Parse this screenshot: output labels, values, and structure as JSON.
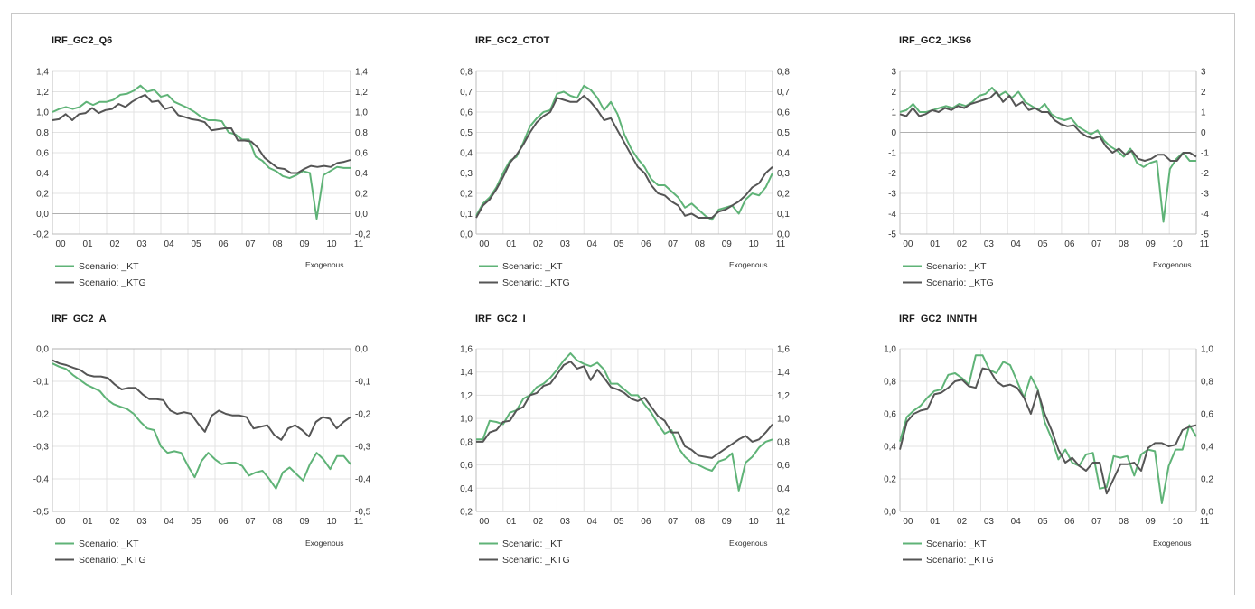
{
  "colors": {
    "kt": "#5fb377",
    "ktg": "#555555",
    "grid": "#e3e3e3",
    "axis": "#bdbdbd"
  },
  "chart_data": [
    {
      "type": "line",
      "title": "IRF_GC2_Q6",
      "xlabel": "Exogenous",
      "x_ticks": [
        "00",
        "01",
        "02",
        "03",
        "04",
        "05",
        "06",
        "07",
        "08",
        "09",
        "10",
        "11"
      ],
      "x_range": [
        0,
        44
      ],
      "ylim": [
        -0.2,
        1.4
      ],
      "y_ticks": [
        -0.2,
        0.0,
        0.2,
        0.4,
        0.6,
        0.8,
        1.0,
        1.2,
        1.4
      ],
      "y_tick_labels": [
        "-0,2",
        "0,0",
        "0,2",
        "0,4",
        "0,6",
        "0,8",
        "1,0",
        "1,2",
        "1,4"
      ],
      "series": [
        {
          "name": "Scenario: _KT",
          "values": [
            1.0,
            1.03,
            1.05,
            1.03,
            1.05,
            1.1,
            1.07,
            1.1,
            1.1,
            1.12,
            1.17,
            1.18,
            1.21,
            1.26,
            1.2,
            1.22,
            1.15,
            1.17,
            1.1,
            1.07,
            1.04,
            1.0,
            0.95,
            0.92,
            0.92,
            0.91,
            0.8,
            0.78,
            0.73,
            0.73,
            0.56,
            0.52,
            0.45,
            0.42,
            0.37,
            0.35,
            0.38,
            0.42,
            0.4,
            -0.05,
            0.38,
            0.42,
            0.46,
            0.45,
            0.45
          ]
        },
        {
          "name": "Scenario: _KTG",
          "values": [
            0.92,
            0.93,
            0.98,
            0.92,
            0.98,
            0.99,
            1.04,
            0.99,
            1.02,
            1.03,
            1.08,
            1.05,
            1.1,
            1.14,
            1.17,
            1.1,
            1.11,
            1.03,
            1.05,
            0.97,
            0.95,
            0.93,
            0.92,
            0.9,
            0.82,
            0.83,
            0.84,
            0.84,
            0.72,
            0.72,
            0.71,
            0.65,
            0.55,
            0.5,
            0.45,
            0.44,
            0.4,
            0.4,
            0.44,
            0.47,
            0.46,
            0.47,
            0.46,
            0.5,
            0.51,
            0.53
          ]
        }
      ]
    },
    {
      "type": "line",
      "title": "IRF_GC2_CTOT",
      "xlabel": "Exogenous",
      "x_ticks": [
        "00",
        "01",
        "02",
        "03",
        "04",
        "05",
        "06",
        "07",
        "08",
        "09",
        "10",
        "11"
      ],
      "x_range": [
        0,
        44
      ],
      "ylim": [
        0.0,
        0.8
      ],
      "y_ticks": [
        0.0,
        0.1,
        0.2,
        0.3,
        0.4,
        0.5,
        0.6,
        0.7,
        0.8
      ],
      "y_tick_labels": [
        "0,0",
        "0,1",
        "0,2",
        "0,3",
        "0,4",
        "0,5",
        "0,6",
        "0,7",
        "0,8"
      ],
      "series": [
        {
          "name": "Scenario: _KT",
          "values": [
            0.09,
            0.15,
            0.18,
            0.23,
            0.3,
            0.36,
            0.38,
            0.45,
            0.53,
            0.57,
            0.6,
            0.61,
            0.69,
            0.7,
            0.68,
            0.67,
            0.73,
            0.71,
            0.67,
            0.61,
            0.65,
            0.59,
            0.49,
            0.42,
            0.37,
            0.33,
            0.27,
            0.24,
            0.24,
            0.21,
            0.18,
            0.13,
            0.15,
            0.12,
            0.09,
            0.07,
            0.12,
            0.13,
            0.14,
            0.1,
            0.17,
            0.2,
            0.19,
            0.23,
            0.3
          ]
        },
        {
          "name": "Scenario: _KTG",
          "values": [
            0.08,
            0.14,
            0.17,
            0.22,
            0.28,
            0.35,
            0.39,
            0.44,
            0.5,
            0.55,
            0.58,
            0.6,
            0.67,
            0.66,
            0.65,
            0.65,
            0.68,
            0.65,
            0.61,
            0.56,
            0.57,
            0.51,
            0.45,
            0.39,
            0.33,
            0.3,
            0.24,
            0.2,
            0.19,
            0.16,
            0.14,
            0.09,
            0.1,
            0.08,
            0.08,
            0.08,
            0.11,
            0.12,
            0.14,
            0.16,
            0.19,
            0.23,
            0.25,
            0.3,
            0.33
          ]
        }
      ]
    },
    {
      "type": "line",
      "title": "IRF_GC2_JKS6",
      "xlabel": "Exogenous",
      "x_ticks": [
        "00",
        "01",
        "02",
        "03",
        "04",
        "05",
        "06",
        "07",
        "08",
        "09",
        "10",
        "11"
      ],
      "x_range": [
        0,
        44
      ],
      "ylim": [
        -5,
        3
      ],
      "y_ticks": [
        -5,
        -4,
        -3,
        -2,
        -1,
        0,
        1,
        2,
        3
      ],
      "y_tick_labels": [
        "-5",
        "-4",
        "-3",
        "-2",
        "-1",
        "0",
        "1",
        "2",
        "3"
      ],
      "series": [
        {
          "name": "Scenario: _KT",
          "values": [
            1.0,
            1.1,
            1.4,
            1.0,
            1.0,
            1.1,
            1.2,
            1.3,
            1.2,
            1.4,
            1.3,
            1.5,
            1.8,
            1.9,
            2.2,
            1.8,
            2.0,
            1.7,
            2.0,
            1.5,
            1.3,
            1.1,
            1.4,
            0.9,
            0.7,
            0.6,
            0.7,
            0.3,
            0.1,
            -0.1,
            0.1,
            -0.4,
            -0.7,
            -0.9,
            -1.2,
            -0.8,
            -1.5,
            -1.7,
            -1.5,
            -1.4,
            -4.4,
            -1.8,
            -1.3,
            -1.0,
            -1.4,
            -1.4
          ]
        },
        {
          "name": "Scenario: _KTG",
          "values": [
            0.9,
            0.8,
            1.2,
            0.8,
            0.9,
            1.1,
            1.0,
            1.2,
            1.1,
            1.3,
            1.2,
            1.4,
            1.5,
            1.6,
            1.7,
            2.0,
            1.5,
            1.8,
            1.3,
            1.5,
            1.1,
            1.2,
            1.0,
            1.0,
            0.6,
            0.4,
            0.3,
            0.35,
            0.0,
            -0.2,
            -0.3,
            -0.2,
            -0.7,
            -1.0,
            -0.8,
            -1.1,
            -0.9,
            -1.3,
            -1.4,
            -1.3,
            -1.1,
            -1.1,
            -1.4,
            -1.4,
            -1.0,
            -1.0,
            -1.2
          ]
        }
      ]
    },
    {
      "type": "line",
      "title": "IRF_GC2_A",
      "xlabel": "Exogenous",
      "x_ticks": [
        "00",
        "01",
        "02",
        "03",
        "04",
        "05",
        "06",
        "07",
        "08",
        "09",
        "10",
        "11"
      ],
      "x_range": [
        0,
        44
      ],
      "ylim": [
        -0.5,
        0.0
      ],
      "y_ticks": [
        -0.5,
        -0.4,
        -0.3,
        -0.2,
        -0.1,
        0.0
      ],
      "y_tick_labels": [
        "-0,5",
        "-0,4",
        "-0,3",
        "-0,2",
        "-0,1",
        "0,0"
      ],
      "series": [
        {
          "name": "Scenario: _KT",
          "values": [
            -0.045,
            -0.055,
            -0.062,
            -0.08,
            -0.095,
            -0.11,
            -0.12,
            -0.13,
            -0.155,
            -0.17,
            -0.178,
            -0.185,
            -0.2,
            -0.225,
            -0.245,
            -0.25,
            -0.3,
            -0.32,
            -0.315,
            -0.32,
            -0.36,
            -0.395,
            -0.345,
            -0.32,
            -0.34,
            -0.355,
            -0.35,
            -0.35,
            -0.36,
            -0.39,
            -0.38,
            -0.375,
            -0.4,
            -0.43,
            -0.38,
            -0.365,
            -0.385,
            -0.405,
            -0.355,
            -0.32,
            -0.34,
            -0.37,
            -0.33,
            -0.33,
            -0.355
          ]
        },
        {
          "name": "Scenario: _KTG",
          "values": [
            -0.035,
            -0.045,
            -0.05,
            -0.058,
            -0.065,
            -0.08,
            -0.085,
            -0.085,
            -0.09,
            -0.11,
            -0.125,
            -0.12,
            -0.12,
            -0.14,
            -0.155,
            -0.155,
            -0.158,
            -0.19,
            -0.2,
            -0.195,
            -0.2,
            -0.23,
            -0.255,
            -0.205,
            -0.19,
            -0.2,
            -0.205,
            -0.205,
            -0.21,
            -0.245,
            -0.24,
            -0.235,
            -0.265,
            -0.28,
            -0.245,
            -0.235,
            -0.25,
            -0.27,
            -0.225,
            -0.21,
            -0.215,
            -0.245,
            -0.225,
            -0.21
          ]
        }
      ]
    },
    {
      "type": "line",
      "title": "IRF_GC2_I",
      "xlabel": "Exogenous",
      "x_ticks": [
        "00",
        "01",
        "02",
        "03",
        "04",
        "05",
        "06",
        "07",
        "08",
        "09",
        "10",
        "11"
      ],
      "x_range": [
        0,
        44
      ],
      "ylim": [
        0.2,
        1.6
      ],
      "y_ticks": [
        0.2,
        0.4,
        0.6,
        0.8,
        1.0,
        1.2,
        1.4,
        1.6
      ],
      "y_tick_labels": [
        "0,2",
        "0,4",
        "0,6",
        "0,8",
        "1,0",
        "1,2",
        "1,4",
        "1,6"
      ],
      "series": [
        {
          "name": "Scenario: _KT",
          "values": [
            0.82,
            0.82,
            0.98,
            0.97,
            0.95,
            1.05,
            1.07,
            1.17,
            1.2,
            1.27,
            1.3,
            1.35,
            1.42,
            1.5,
            1.56,
            1.5,
            1.47,
            1.45,
            1.48,
            1.42,
            1.3,
            1.3,
            1.25,
            1.2,
            1.2,
            1.12,
            1.05,
            0.95,
            0.87,
            0.9,
            0.75,
            0.67,
            0.62,
            0.6,
            0.57,
            0.55,
            0.63,
            0.65,
            0.7,
            0.38,
            0.62,
            0.67,
            0.75,
            0.8,
            0.82
          ]
        },
        {
          "name": "Scenario: _KTG",
          "values": [
            0.8,
            0.8,
            0.88,
            0.9,
            0.97,
            0.98,
            1.07,
            1.1,
            1.2,
            1.22,
            1.28,
            1.3,
            1.38,
            1.46,
            1.49,
            1.43,
            1.45,
            1.33,
            1.42,
            1.35,
            1.27,
            1.25,
            1.22,
            1.17,
            1.15,
            1.18,
            1.1,
            1.02,
            0.98,
            0.88,
            0.88,
            0.76,
            0.73,
            0.68,
            0.67,
            0.66,
            0.7,
            0.74,
            0.78,
            0.82,
            0.85,
            0.8,
            0.82,
            0.88,
            0.95
          ]
        }
      ]
    },
    {
      "type": "line",
      "title": "IRF_GC2_INNTH",
      "xlabel": "Exogenous",
      "x_ticks": [
        "00",
        "01",
        "02",
        "03",
        "04",
        "05",
        "06",
        "07",
        "08",
        "09",
        "10",
        "11"
      ],
      "x_range": [
        0,
        44
      ],
      "ylim": [
        0.0,
        1.0
      ],
      "y_ticks": [
        0.0,
        0.2,
        0.4,
        0.6,
        0.8,
        1.0
      ],
      "y_tick_labels": [
        "0,0",
        "0,2",
        "0,4",
        "0,6",
        "0,8",
        "1,0"
      ],
      "series": [
        {
          "name": "Scenario: _KT",
          "values": [
            0.43,
            0.58,
            0.62,
            0.65,
            0.7,
            0.74,
            0.75,
            0.84,
            0.85,
            0.82,
            0.78,
            0.96,
            0.96,
            0.87,
            0.85,
            0.92,
            0.9,
            0.8,
            0.7,
            0.83,
            0.75,
            0.55,
            0.45,
            0.32,
            0.38,
            0.3,
            0.28,
            0.35,
            0.36,
            0.14,
            0.15,
            0.34,
            0.33,
            0.34,
            0.22,
            0.35,
            0.38,
            0.37,
            0.05,
            0.28,
            0.38,
            0.38,
            0.53,
            0.46
          ]
        },
        {
          "name": "Scenario: _KTG",
          "values": [
            0.38,
            0.55,
            0.6,
            0.62,
            0.63,
            0.72,
            0.73,
            0.76,
            0.8,
            0.81,
            0.77,
            0.76,
            0.88,
            0.87,
            0.8,
            0.77,
            0.78,
            0.76,
            0.7,
            0.6,
            0.74,
            0.6,
            0.5,
            0.38,
            0.3,
            0.33,
            0.28,
            0.25,
            0.3,
            0.3,
            0.11,
            0.2,
            0.29,
            0.29,
            0.3,
            0.25,
            0.39,
            0.42,
            0.42,
            0.4,
            0.41,
            0.5,
            0.52,
            0.53
          ]
        }
      ]
    }
  ]
}
